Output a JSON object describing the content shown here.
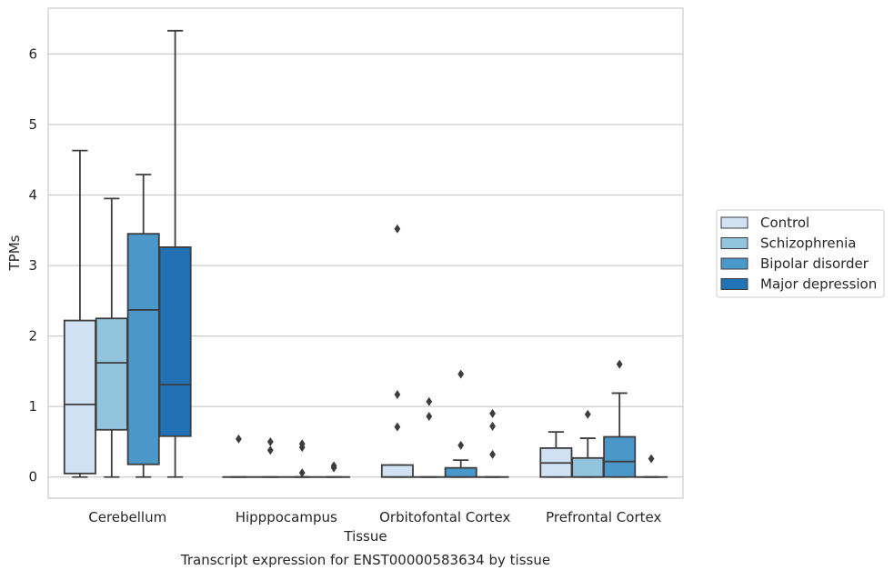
{
  "chart_data": {
    "type": "boxplot",
    "title": "",
    "caption": "Transcript expression for ENST00000583634 by tissue",
    "xlabel": "Tissue",
    "ylabel": "TPMs",
    "ylim": [
      -0.3,
      6.65
    ],
    "yticks": [
      0,
      1,
      2,
      3,
      4,
      5,
      6
    ],
    "grid": "horizontal",
    "legend_position": "right",
    "categories": [
      "Cerebellum",
      "Hipppocampus",
      "Orbitofontal Cortex",
      "Prefrontal Cortex"
    ],
    "series": [
      {
        "name": "Control",
        "color": "#cfe1f2",
        "boxes": [
          {
            "whislo": 0.0,
            "q1": 0.05,
            "med": 1.03,
            "q3": 2.22,
            "whishi": 4.63,
            "fliers": []
          },
          {
            "whislo": 0.0,
            "q1": 0.0,
            "med": 0.0,
            "q3": 0.0,
            "whishi": 0.0,
            "fliers": [
              0.54
            ]
          },
          {
            "whislo": 0.0,
            "q1": 0.0,
            "med": 0.0,
            "q3": 0.17,
            "whishi": 0.17,
            "fliers": [
              0.71,
              1.17,
              3.52
            ]
          },
          {
            "whislo": 0.0,
            "q1": 0.0,
            "med": 0.2,
            "q3": 0.41,
            "whishi": 0.64,
            "fliers": []
          }
        ]
      },
      {
        "name": "Schizophrenia",
        "color": "#93c4de",
        "boxes": [
          {
            "whislo": 0.0,
            "q1": 0.67,
            "med": 1.62,
            "q3": 2.25,
            "whishi": 3.95,
            "fliers": []
          },
          {
            "whislo": 0.0,
            "q1": 0.0,
            "med": 0.0,
            "q3": 0.0,
            "whishi": 0.0,
            "fliers": [
              0.38,
              0.5
            ]
          },
          {
            "whislo": 0.0,
            "q1": 0.0,
            "med": 0.0,
            "q3": 0.0,
            "whishi": 0.0,
            "fliers": [
              0.86,
              1.07
            ]
          },
          {
            "whislo": 0.0,
            "q1": 0.0,
            "med": 0.0,
            "q3": 0.27,
            "whishi": 0.55,
            "fliers": [
              0.89
            ]
          }
        ]
      },
      {
        "name": "Bipolar disorder",
        "color": "#4a98c9",
        "boxes": [
          {
            "whislo": 0.0,
            "q1": 0.18,
            "med": 2.37,
            "q3": 3.45,
            "whishi": 4.29,
            "fliers": []
          },
          {
            "whislo": 0.0,
            "q1": 0.0,
            "med": 0.0,
            "q3": 0.0,
            "whishi": 0.0,
            "fliers": [
              0.06,
              0.42,
              0.47
            ]
          },
          {
            "whislo": 0.0,
            "q1": 0.0,
            "med": 0.0,
            "q3": 0.13,
            "whishi": 0.24,
            "fliers": [
              0.45,
              1.46
            ]
          },
          {
            "whislo": 0.0,
            "q1": 0.0,
            "med": 0.22,
            "q3": 0.57,
            "whishi": 1.19,
            "fliers": [
              1.6
            ]
          }
        ]
      },
      {
        "name": "Major depression",
        "color": "#2171b5",
        "boxes": [
          {
            "whislo": 0.0,
            "q1": 0.58,
            "med": 1.31,
            "q3": 3.26,
            "whishi": 6.33,
            "fliers": []
          },
          {
            "whislo": 0.0,
            "q1": 0.0,
            "med": 0.0,
            "q3": 0.0,
            "whishi": 0.0,
            "fliers": [
              0.13,
              0.16
            ]
          },
          {
            "whislo": 0.0,
            "q1": 0.0,
            "med": 0.0,
            "q3": 0.0,
            "whishi": 0.0,
            "fliers": [
              0.32,
              0.72,
              0.9
            ]
          },
          {
            "whislo": 0.0,
            "q1": 0.0,
            "med": 0.0,
            "q3": 0.0,
            "whishi": 0.0,
            "fliers": [
              0.26
            ]
          }
        ]
      }
    ]
  }
}
